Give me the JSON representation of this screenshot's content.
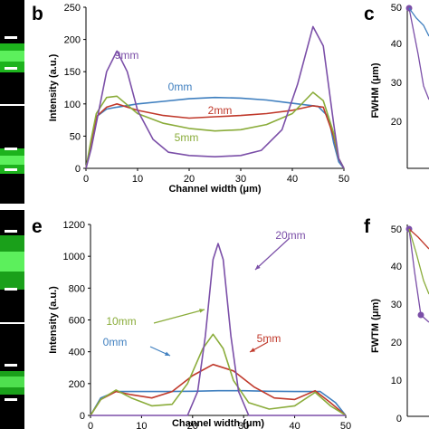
{
  "panels": {
    "b": "b",
    "c": "c",
    "e": "e",
    "f": "f"
  },
  "left_strip": {
    "description_colors": {
      "background": "#000000",
      "band": "#22cc22",
      "marker": "#ffffff"
    }
  },
  "right_panels": {
    "c": {
      "ylabel": "FWHM (μm)",
      "ticks": [
        "50",
        "40",
        "30",
        "20"
      ],
      "point_color": "#7b4fa8"
    },
    "f": {
      "ylabel": "FWTM (μm)",
      "ticks": [
        "50",
        "40",
        "30",
        "20",
        "10",
        "0"
      ],
      "point_color": "#7b4fa8"
    }
  },
  "chart_data": [
    {
      "id": "b",
      "type": "line",
      "xlabel": "Channel width (μm)",
      "ylabel": "Intensity (a.u.)",
      "xlim": [
        0,
        50
      ],
      "ylim": [
        0,
        250
      ],
      "xticks": [
        0,
        10,
        20,
        30,
        40,
        50
      ],
      "yticks": [
        0,
        50,
        100,
        150,
        200,
        250
      ],
      "grid": false,
      "series": [
        {
          "name": "0mm",
          "color": "#3f7fbf",
          "x": [
            0,
            1,
            2,
            4,
            6,
            10,
            15,
            20,
            25,
            30,
            35,
            40,
            45,
            47,
            48,
            49,
            50
          ],
          "y": [
            0,
            40,
            80,
            92,
            95,
            100,
            104,
            108,
            110,
            109,
            106,
            101,
            96,
            80,
            40,
            10,
            0
          ]
        },
        {
          "name": "2mm",
          "color": "#c0392b",
          "x": [
            0,
            1,
            2,
            4,
            6,
            10,
            15,
            20,
            25,
            30,
            35,
            40,
            44,
            46,
            48,
            49,
            50
          ],
          "y": [
            0,
            40,
            80,
            95,
            100,
            90,
            82,
            78,
            80,
            82,
            85,
            90,
            97,
            95,
            50,
            15,
            0
          ]
        },
        {
          "name": "5mm",
          "color": "#8aac3a",
          "x": [
            0,
            1,
            2,
            4,
            6,
            10,
            15,
            20,
            25,
            30,
            35,
            40,
            44,
            46,
            48,
            49,
            50
          ],
          "y": [
            0,
            45,
            85,
            110,
            112,
            85,
            70,
            62,
            58,
            60,
            68,
            85,
            118,
            105,
            55,
            15,
            0
          ]
        },
        {
          "name": "9mm",
          "color": "#7b4fa8",
          "x": [
            0,
            1,
            2,
            4,
            6,
            8,
            10,
            13,
            16,
            20,
            25,
            30,
            34,
            38,
            41,
            44,
            46,
            48,
            49,
            50
          ],
          "y": [
            0,
            30,
            70,
            150,
            182,
            150,
            90,
            45,
            25,
            20,
            18,
            20,
            28,
            60,
            130,
            220,
            190,
            70,
            15,
            0
          ]
        }
      ],
      "annotations": [
        "9mm",
        "0mm",
        "2mm",
        "5mm"
      ]
    },
    {
      "id": "e",
      "type": "line",
      "xlabel": "Channel width (μm)",
      "ylabel": "Intensity (a.u.)",
      "xlim": [
        0,
        50
      ],
      "ylim": [
        0,
        1200
      ],
      "xticks": [
        0,
        10,
        20,
        30,
        40,
        50
      ],
      "yticks": [
        0,
        200,
        400,
        600,
        800,
        1000,
        1200
      ],
      "grid": false,
      "series": [
        {
          "name": "0mm",
          "color": "#3f7fbf",
          "x": [
            0,
            2,
            5,
            10,
            15,
            20,
            25,
            30,
            35,
            40,
            45,
            48,
            50
          ],
          "y": [
            0,
            110,
            150,
            150,
            150,
            152,
            155,
            155,
            152,
            150,
            150,
            80,
            0
          ]
        },
        {
          "name": "5mm",
          "color": "#c0392b",
          "x": [
            0,
            2,
            5,
            8,
            12,
            16,
            20,
            24,
            28,
            32,
            36,
            40,
            44,
            47,
            50
          ],
          "y": [
            0,
            100,
            150,
            130,
            110,
            150,
            250,
            320,
            280,
            180,
            110,
            100,
            155,
            80,
            0
          ]
        },
        {
          "name": "10mm",
          "color": "#8aac3a",
          "x": [
            0,
            2,
            5,
            8,
            12,
            16,
            19,
            22,
            24,
            26,
            28,
            31,
            35,
            40,
            44,
            47,
            50
          ],
          "y": [
            0,
            100,
            160,
            110,
            60,
            70,
            200,
            420,
            510,
            420,
            220,
            80,
            40,
            60,
            145,
            60,
            0
          ]
        },
        {
          "name": "20mm",
          "color": "#7b4fa8",
          "x": [
            0,
            10,
            19,
            21,
            22.5,
            24,
            25,
            26,
            27.5,
            29,
            31,
            40,
            50
          ],
          "y": [
            0,
            0,
            0,
            150,
            500,
            980,
            1080,
            980,
            500,
            150,
            0,
            0,
            0
          ]
        }
      ],
      "annotations": [
        "20mm",
        "10mm",
        "0mm",
        "5mm"
      ]
    }
  ]
}
